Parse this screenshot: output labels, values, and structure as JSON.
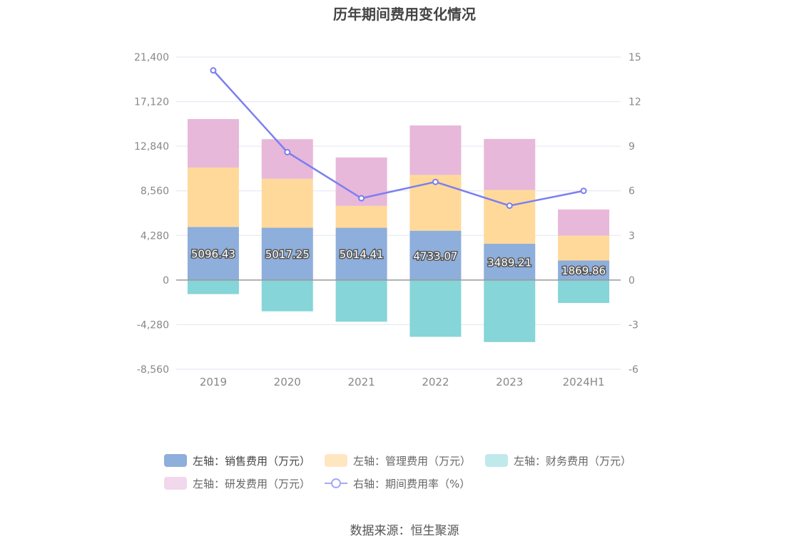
{
  "chart_data": {
    "type": "bar",
    "title": "历年期间费用变化情况",
    "categories": [
      "2019",
      "2020",
      "2021",
      "2022",
      "2023",
      "2024H1"
    ],
    "left_axis": {
      "ylim": [
        -8560,
        21400
      ],
      "ticks": [
        21400,
        17120,
        12840,
        8560,
        4280,
        0,
        -4280,
        -8560
      ],
      "tick_labels": [
        "21,400",
        "17,120",
        "12,840",
        "8,560",
        "4,280",
        "0",
        "-4,280",
        "-8,560"
      ]
    },
    "right_axis": {
      "ylim": [
        -6,
        15
      ],
      "ticks": [
        15,
        12,
        9,
        6,
        3,
        0,
        -3,
        -6
      ],
      "tick_labels": [
        "15",
        "12",
        "9",
        "6",
        "3",
        "0",
        "-3",
        "-6"
      ]
    },
    "grid": true,
    "series": [
      {
        "name": "左轴：销售费用（万元）",
        "axis": "left",
        "kind": "bar",
        "color": "#8eaedb",
        "values": [
          5096.43,
          5017.25,
          5014.41,
          4733.07,
          3489.21,
          1869.86
        ],
        "labels": [
          "5096.43",
          "5017.25",
          "5014.41",
          "4733.07",
          "3489.21",
          "1869.86"
        ]
      },
      {
        "name": "左轴：管理费用（万元）",
        "axis": "left",
        "kind": "bar",
        "color": "#ffd99a",
        "values": [
          5700,
          4700,
          2100,
          5350,
          5150,
          2400
        ]
      },
      {
        "name": "左轴：财务费用（万元）",
        "axis": "left",
        "kind": "bar",
        "color": "#86d5d8",
        "values": [
          -1350,
          -3000,
          -4000,
          -5450,
          -5950,
          -2200
        ]
      },
      {
        "name": "左轴：研发费用（万元）",
        "axis": "left",
        "kind": "bar",
        "color": "#e7b8da",
        "values": [
          4650,
          3800,
          4650,
          4750,
          4900,
          2500
        ]
      },
      {
        "name": "右轴：期间费用率（%）",
        "axis": "right",
        "kind": "line",
        "color": "#7b7ff0",
        "values": [
          14.1,
          8.6,
          5.5,
          6.6,
          5.0,
          6.0
        ]
      }
    ],
    "legend_position": "bottom"
  },
  "source": "数据来源：恒生聚源"
}
